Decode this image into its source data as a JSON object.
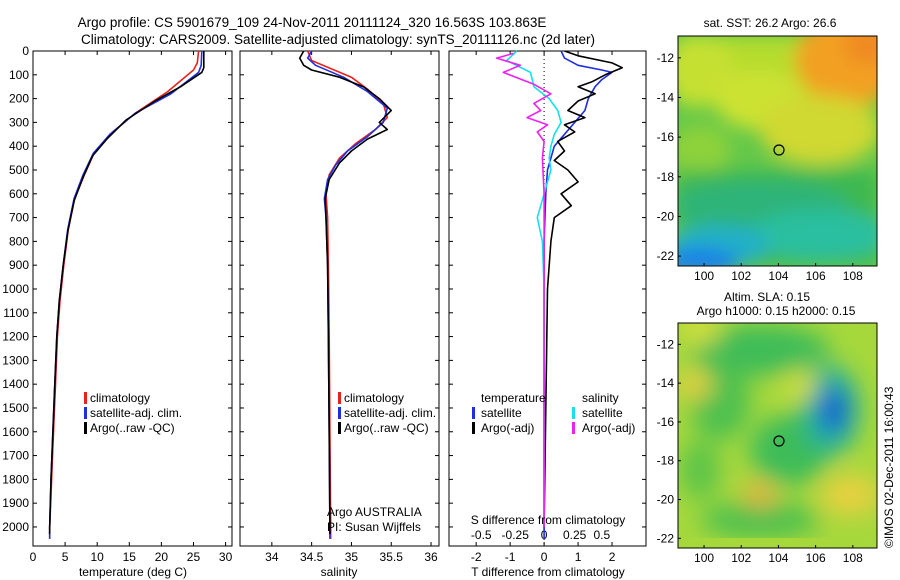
{
  "header": {
    "line1": "Argo profile: CS 5901679_109 24-Nov-2011 20111124_320 16.563S 103.863E",
    "line2": "Climatology: CARS2009. Satellite-adjusted climatology: synTS_20111126.nc (2d later)"
  },
  "colors": {
    "climatology": "#e8231c",
    "satellite": "#1f2ee0",
    "argo": "#000000",
    "sat_salinity": "#18e0e8",
    "argo_salinity": "#ee22ee"
  },
  "chart_data": [
    {
      "id": "temperature",
      "type": "line",
      "xlabel": "temperature (deg C)",
      "xlim": [
        0,
        31
      ],
      "xticks": [
        0,
        5,
        10,
        15,
        20,
        25,
        30
      ],
      "ylim": [
        0,
        2080
      ],
      "yticks": [
        0,
        100,
        200,
        300,
        400,
        500,
        600,
        700,
        800,
        900,
        1000,
        1100,
        1200,
        1300,
        1400,
        1500,
        1600,
        1700,
        1800,
        1900,
        2000
      ],
      "legend": [
        "climatology",
        "satellite-adj. clim.",
        "Argo(..raw -QC)"
      ],
      "series": [
        {
          "name": "climatology",
          "color": "#e8231c",
          "points": [
            [
              25.8,
              0
            ],
            [
              25.6,
              50
            ],
            [
              25,
              80
            ],
            [
              21,
              170
            ],
            [
              16,
              260
            ],
            [
              12,
              350
            ],
            [
              9.5,
              430
            ],
            [
              8,
              520
            ],
            [
              6.5,
              620
            ],
            [
              5.5,
              750
            ],
            [
              4.8,
              900
            ],
            [
              4.2,
              1050
            ],
            [
              3.8,
              1200
            ],
            [
              3.5,
              1400
            ],
            [
              3.2,
              1600
            ],
            [
              2.9,
              1800
            ],
            [
              2.6,
              2000
            ],
            [
              2.6,
              2050
            ]
          ]
        },
        {
          "name": "satellite-adj. clim.",
          "color": "#1f2ee0",
          "points": [
            [
              26.3,
              0
            ],
            [
              26.2,
              60
            ],
            [
              25.8,
              90
            ],
            [
              21.5,
              180
            ],
            [
              16,
              260
            ],
            [
              12,
              350
            ],
            [
              9.4,
              430
            ],
            [
              7.8,
              520
            ],
            [
              6.4,
              620
            ],
            [
              5.4,
              750
            ],
            [
              4.7,
              900
            ],
            [
              4.1,
              1050
            ],
            [
              3.7,
              1200
            ],
            [
              3.4,
              1400
            ],
            [
              3.1,
              1600
            ],
            [
              2.8,
              1800
            ],
            [
              2.6,
              2000
            ],
            [
              2.6,
              2050
            ]
          ]
        },
        {
          "name": "Argo(..raw -QC)",
          "color": "#000000",
          "points": [
            [
              26.6,
              0
            ],
            [
              26.6,
              70
            ],
            [
              26.3,
              90
            ],
            [
              23,
              150
            ],
            [
              19,
              210
            ],
            [
              14.5,
              290
            ],
            [
              11.5,
              370
            ],
            [
              9.3,
              440
            ],
            [
              7.8,
              530
            ],
            [
              6.4,
              630
            ],
            [
              5.4,
              760
            ],
            [
              4.7,
              900
            ],
            [
              4.1,
              1050
            ],
            [
              3.7,
              1200
            ],
            [
              3.4,
              1400
            ],
            [
              3.1,
              1600
            ],
            [
              2.8,
              1800
            ],
            [
              2.6,
              2000
            ],
            [
              2.6,
              2030
            ]
          ]
        }
      ]
    },
    {
      "id": "salinity",
      "type": "line",
      "xlabel": "salinity",
      "xlim": [
        33.6,
        36.1
      ],
      "xticks": [
        34,
        34.5,
        35,
        35.5,
        36
      ],
      "ylim": [
        0,
        2080
      ],
      "legend": [
        "climatology",
        "satellite-adj. clim.",
        "Argo(..raw -QC)"
      ],
      "annotations": [
        "Argo AUSTRALIA",
        "PI: Susan Wijffels"
      ],
      "series": [
        {
          "name": "climatology",
          "color": "#e8231c",
          "points": [
            [
              34.45,
              0
            ],
            [
              34.5,
              40
            ],
            [
              35.0,
              110
            ],
            [
              35.2,
              160
            ],
            [
              35.4,
              220
            ],
            [
              35.45,
              280
            ],
            [
              35.3,
              330
            ],
            [
              35.05,
              390
            ],
            [
              34.85,
              450
            ],
            [
              34.72,
              520
            ],
            [
              34.68,
              600
            ],
            [
              34.7,
              700
            ],
            [
              34.71,
              900
            ],
            [
              34.72,
              1200
            ],
            [
              34.73,
              1600
            ],
            [
              34.74,
              2000
            ],
            [
              34.74,
              2050
            ]
          ]
        },
        {
          "name": "satellite-adj. clim.",
          "color": "#1f2ee0",
          "points": [
            [
              34.5,
              0
            ],
            [
              34.45,
              30
            ],
            [
              34.55,
              60
            ],
            [
              34.9,
              110
            ],
            [
              35.2,
              170
            ],
            [
              35.45,
              240
            ],
            [
              35.4,
              300
            ],
            [
              35.2,
              360
            ],
            [
              34.95,
              420
            ],
            [
              34.8,
              480
            ],
            [
              34.7,
              540
            ],
            [
              34.66,
              620
            ],
            [
              34.68,
              700
            ],
            [
              34.7,
              900
            ],
            [
              34.71,
              1200
            ],
            [
              34.72,
              1600
            ],
            [
              34.73,
              2000
            ],
            [
              34.73,
              2050
            ]
          ]
        },
        {
          "name": "Argo(..raw -QC)",
          "color": "#000000",
          "points": [
            [
              34.4,
              0
            ],
            [
              34.35,
              30
            ],
            [
              34.4,
              60
            ],
            [
              34.5,
              80
            ],
            [
              34.85,
              110
            ],
            [
              35.15,
              150
            ],
            [
              35.35,
              200
            ],
            [
              35.5,
              250
            ],
            [
              35.35,
              300
            ],
            [
              35.45,
              330
            ],
            [
              35.2,
              370
            ],
            [
              35.0,
              420
            ],
            [
              34.85,
              470
            ],
            [
              34.72,
              540
            ],
            [
              34.67,
              620
            ],
            [
              34.68,
              700
            ],
            [
              34.7,
              900
            ],
            [
              34.71,
              1200
            ],
            [
              34.72,
              1600
            ],
            [
              34.73,
              2000
            ],
            [
              34.73,
              2030
            ]
          ]
        }
      ]
    },
    {
      "id": "differences",
      "type": "line",
      "xlabel": "T difference from climatology",
      "xlabel2": "S difference from climatology",
      "xlim": [
        -2.8,
        3.0
      ],
      "xticks": [
        -2,
        -1,
        0,
        1,
        2
      ],
      "xticks2": [
        {
          "v": -1.85,
          "l": "-0.5"
        },
        {
          "v": -0.85,
          "l": "-0.25"
        },
        {
          "v": 0,
          "l": "0"
        },
        {
          "v": 0.9,
          "l": "0.25"
        },
        {
          "v": 1.7,
          "l": "0.5"
        }
      ],
      "ylim": [
        0,
        2080
      ],
      "legend_left_title": "temperature",
      "legend_right_title": "salinity",
      "legend_left": [
        "satellite",
        "Argo(-adj)"
      ],
      "legend_right": [
        "satellite",
        "Argo(-adj)"
      ],
      "series": [
        {
          "name": "T satellite",
          "color": "#1f2ee0",
          "points": [
            [
              0.5,
              0
            ],
            [
              0.6,
              30
            ],
            [
              1.0,
              60
            ],
            [
              1.7,
              80
            ],
            [
              2.0,
              90
            ],
            [
              1.7,
              120
            ],
            [
              1.5,
              150
            ],
            [
              1.3,
              200
            ],
            [
              1.2,
              250
            ],
            [
              0.9,
              300
            ],
            [
              0.6,
              350
            ],
            [
              0.3,
              400
            ],
            [
              0.2,
              450
            ],
            [
              0.1,
              500
            ],
            [
              0.05,
              600
            ],
            [
              0.0,
              800
            ],
            [
              0.0,
              1200
            ],
            [
              0.0,
              2050
            ]
          ]
        },
        {
          "name": "T Argo(-adj)",
          "color": "#000000",
          "points": [
            [
              0.6,
              0
            ],
            [
              1.0,
              20
            ],
            [
              2.0,
              50
            ],
            [
              2.3,
              70
            ],
            [
              1.8,
              100
            ],
            [
              1.4,
              130
            ],
            [
              1.0,
              150
            ],
            [
              1.5,
              180
            ],
            [
              1.0,
              210
            ],
            [
              0.7,
              250
            ],
            [
              1.2,
              280
            ],
            [
              0.6,
              310
            ],
            [
              0.9,
              340
            ],
            [
              0.4,
              380
            ],
            [
              0.6,
              420
            ],
            [
              0.3,
              460
            ],
            [
              0.7,
              500
            ],
            [
              1.0,
              550
            ],
            [
              0.5,
              600
            ],
            [
              0.8,
              650
            ],
            [
              0.3,
              700
            ],
            [
              0.2,
              800
            ],
            [
              0.1,
              1000
            ],
            [
              0.05,
              1500
            ],
            [
              0.0,
              2000
            ]
          ]
        },
        {
          "name": "S satellite",
          "color": "#18e0e8",
          "points": [
            [
              -0.8,
              0
            ],
            [
              -1.1,
              40
            ],
            [
              -0.4,
              90
            ],
            [
              -0.3,
              150
            ],
            [
              0.15,
              200
            ],
            [
              0.4,
              250
            ],
            [
              0.5,
              300
            ],
            [
              0.3,
              350
            ],
            [
              0.2,
              400
            ],
            [
              0.15,
              450
            ],
            [
              0.2,
              500
            ],
            [
              0.0,
              600
            ],
            [
              -0.2,
              700
            ],
            [
              -0.05,
              800
            ],
            [
              0.0,
              1000
            ],
            [
              0.0,
              1500
            ],
            [
              0.0,
              2000
            ]
          ]
        },
        {
          "name": "S Argo(-adj)",
          "color": "#ee22ee",
          "points": [
            [
              -0.9,
              10
            ],
            [
              -1.4,
              30
            ],
            [
              -0.7,
              60
            ],
            [
              -1.2,
              90
            ],
            [
              -0.3,
              140
            ],
            [
              0.2,
              180
            ],
            [
              -0.3,
              220
            ],
            [
              -0.1,
              250
            ],
            [
              -0.5,
              280
            ],
            [
              0.1,
              310
            ],
            [
              -0.2,
              340
            ],
            [
              0.0,
              380
            ],
            [
              -0.05,
              450
            ],
            [
              0.0,
              600
            ],
            [
              0.0,
              1000
            ],
            [
              0.0,
              2000
            ]
          ]
        }
      ]
    }
  ],
  "maps": {
    "sst": {
      "title": "sat. SST: 26.2  Argo: 26.6",
      "xticks": [
        "100",
        "102",
        "104",
        "106",
        "108"
      ],
      "yticks": [
        "-12",
        "-14",
        "-16",
        "-18",
        "-20",
        "-22"
      ]
    },
    "sla": {
      "title1": "Altim. SLA: 0.15",
      "title2": "Argo h1000: 0.15  h2000: 0.15",
      "xticks": [
        "100",
        "102",
        "104",
        "106",
        "108"
      ],
      "yticks": [
        "-12",
        "-14",
        "-16",
        "-18",
        "-20",
        "-22"
      ]
    }
  },
  "footer": "©IMOS 02-Dec-2011 16:00:43"
}
